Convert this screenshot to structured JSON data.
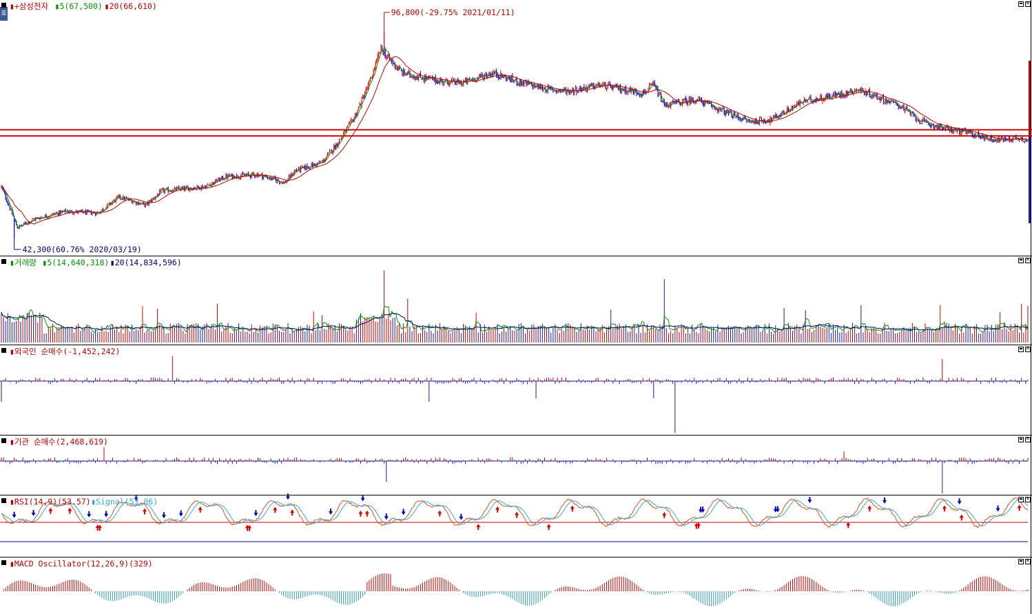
{
  "left_tab": {
    "label": "호"
  },
  "panels": [
    {
      "id": "price",
      "legend": [
        {
          "text": "▮+삼성전자",
          "color": "#c00000"
        },
        {
          "text": "▮5(67,500)",
          "color": "#009900"
        },
        {
          "text": "▮20(66,610)",
          "color": "#c00000"
        }
      ]
    },
    {
      "id": "volume",
      "legend": [
        {
          "text": "▮거래량",
          "color": "#009900"
        },
        {
          "text": "▮5(14,640,318)",
          "color": "#009900"
        },
        {
          "text": "▮20(14,834,596)",
          "color": "#000080"
        }
      ]
    },
    {
      "id": "foreign",
      "legend": [
        {
          "text": "▮외국인 순매수(-1,452,242)",
          "color": "#c00000"
        }
      ]
    },
    {
      "id": "inst",
      "legend": [
        {
          "text": "▮기관 순매수(2,468,619)",
          "color": "#c00000"
        }
      ]
    },
    {
      "id": "rsi",
      "legend": [
        {
          "text": "▮RSI(14,9)(53.57)",
          "color": "#c00000"
        },
        {
          "text": "▮Signal(53.06)",
          "color": "#33aadd"
        }
      ]
    },
    {
      "id": "macd",
      "legend": [
        {
          "text": "▮MACD Oscillator(12,26,9)(329)",
          "color": "#c00000"
        }
      ]
    }
  ],
  "chart_data": {
    "type": "candlestick",
    "title": "삼성전자",
    "period": "daily",
    "annotations": {
      "high": {
        "text": "96,800(-29.75% 2021/01/11)",
        "value": 96800,
        "date": "2021/01/11"
      },
      "low": {
        "text": "42,300(60.76% 2020/03/19)",
        "value": 42300,
        "date": "2020/03/19"
      }
    },
    "moving_averages": [
      {
        "name": "5",
        "last": 67500,
        "color": "#009900"
      },
      {
        "name": "20",
        "last": 66610,
        "color": "#c00000"
      }
    ],
    "horizontal_lines": [
      {
        "value": 70000,
        "color": "#cc0000"
      },
      {
        "value": 68500,
        "color": "#cc0000"
      }
    ],
    "anchor_series": {
      "description": "approximate closing path read from chart (index, price)",
      "points": [
        [
          0,
          56000
        ],
        [
          15,
          46000
        ],
        [
          30,
          48000
        ],
        [
          60,
          50000
        ],
        [
          90,
          49500
        ],
        [
          110,
          53500
        ],
        [
          135,
          51500
        ],
        [
          150,
          55000
        ],
        [
          190,
          56000
        ],
        [
          210,
          58500
        ],
        [
          240,
          59000
        ],
        [
          265,
          57000
        ],
        [
          275,
          60000
        ],
        [
          300,
          62000
        ],
        [
          315,
          67000
        ],
        [
          330,
          73000
        ],
        [
          345,
          82000
        ],
        [
          355,
          90000
        ],
        [
          360,
          88000
        ],
        [
          375,
          84000
        ],
        [
          390,
          83000
        ],
        [
          410,
          82000
        ],
        [
          430,
          81500
        ],
        [
          460,
          84000
        ],
        [
          480,
          82000
        ],
        [
          510,
          80000
        ],
        [
          530,
          79500
        ],
        [
          560,
          81000
        ],
        [
          600,
          79000
        ],
        [
          610,
          81000
        ],
        [
          620,
          76000
        ],
        [
          650,
          77500
        ],
        [
          680,
          74000
        ],
        [
          700,
          72000
        ],
        [
          720,
          72500
        ],
        [
          750,
          77000
        ],
        [
          790,
          79000
        ],
        [
          800,
          80000
        ],
        [
          840,
          76000
        ],
        [
          860,
          72000
        ],
        [
          880,
          70500
        ],
        [
          900,
          69500
        ],
        [
          930,
          67500
        ],
        [
          950,
          68000
        ],
        [
          960,
          67500
        ]
      ]
    },
    "volume": {
      "ma5_last": 14640318,
      "ma20_last": 14834596
    },
    "foreign_net_buy_last": -1452242,
    "institution_net_buy_last": 2468619,
    "rsi": {
      "params": "14,9",
      "last": 53.57,
      "signal_last": 53.06,
      "upper": 70,
      "lower": 30
    },
    "macd_oscillator": {
      "params": "12,26,9",
      "last": 329
    }
  }
}
